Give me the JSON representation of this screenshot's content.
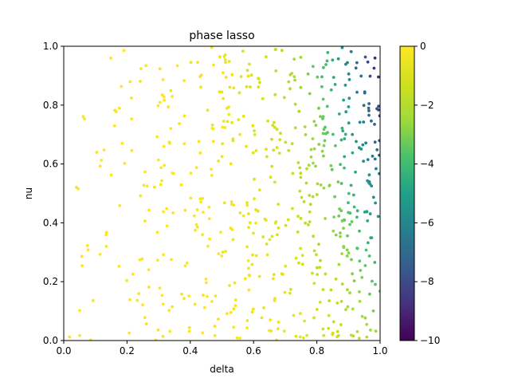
{
  "chart_data": {
    "type": "scatter",
    "title": "phase lasso",
    "xlabel": "delta",
    "ylabel": "nu",
    "xlim": [
      0,
      1
    ],
    "ylim": [
      0,
      1
    ],
    "xticks": [
      "0.0",
      "0.2",
      "0.4",
      "0.6",
      "0.8",
      "1.0"
    ],
    "yticks": [
      "0.0",
      "0.2",
      "0.4",
      "0.6",
      "0.8",
      "1.0"
    ],
    "grid": false,
    "colormap": "viridis",
    "colorbar": {
      "range": [
        -10,
        0
      ],
      "ticks": [
        "0",
        "−2",
        "−4",
        "−6",
        "−8",
        "−10"
      ],
      "tick_values": [
        0,
        -2,
        -4,
        -6,
        -8,
        -10
      ]
    },
    "point_count": 600,
    "value_model": "log value decreases as delta approaches 1 and as nu increases; near 0 for small delta, about -10 at delta=1, nu=1"
  }
}
